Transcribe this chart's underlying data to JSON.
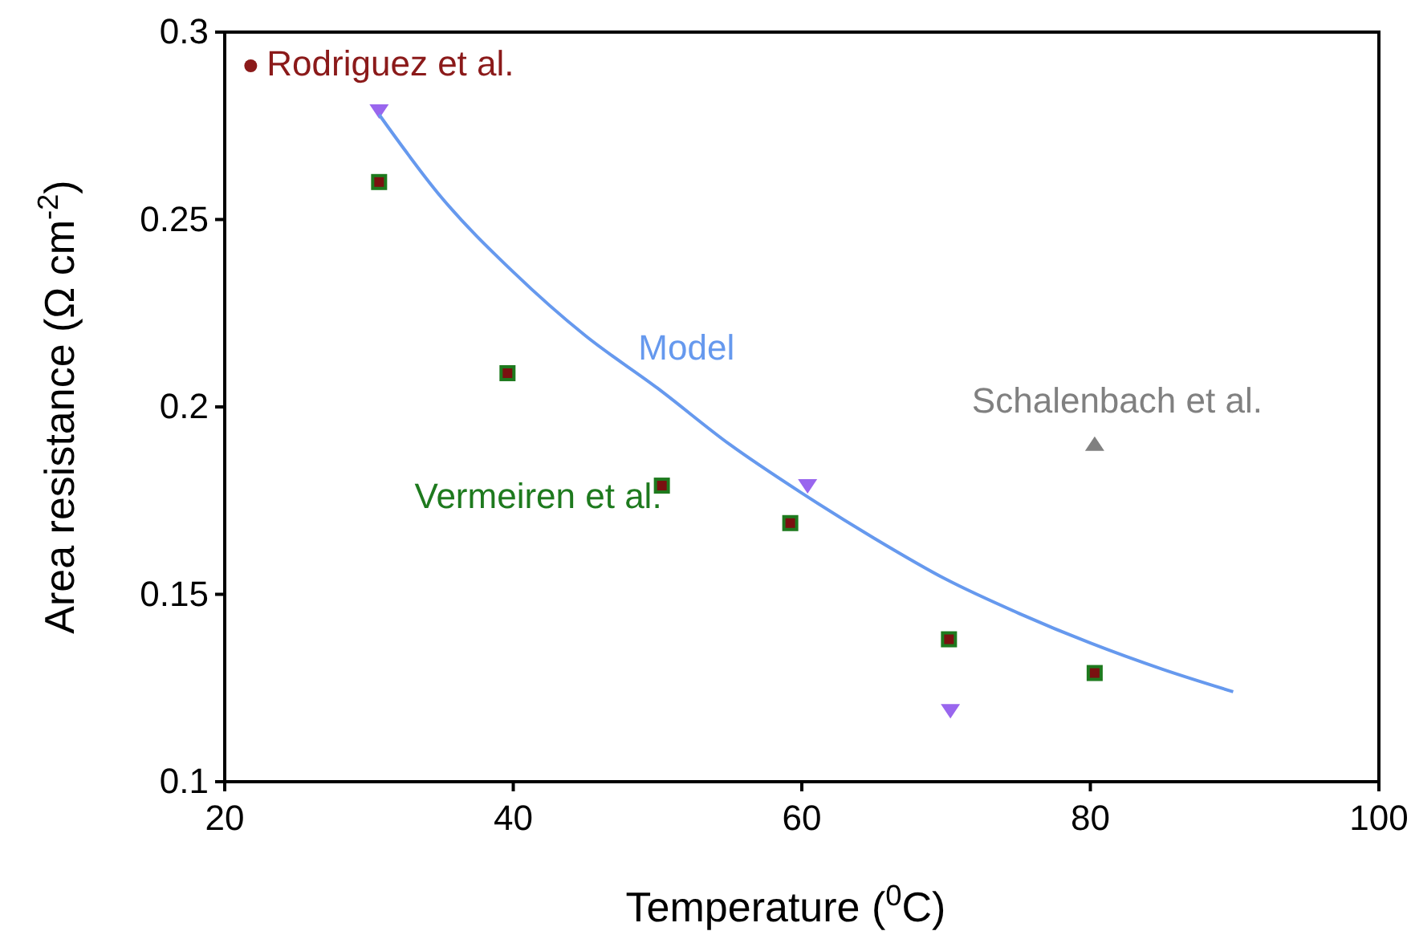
{
  "chart_data": {
    "type": "scatter",
    "xlabel": "Temperature ($^{0}$C)",
    "ylabel": "Area resistance (Ω cm$^{-2}$)",
    "xlim": [
      20,
      100
    ],
    "xticks": [
      20,
      40,
      60,
      80,
      100
    ],
    "ylim": [
      0.1,
      0.3
    ],
    "yticks": [
      0.1,
      0.15,
      0.2,
      0.25,
      0.3
    ],
    "grid": false,
    "series": [
      {
        "name": "Rodriguez et al.",
        "color": "#8b1a1a",
        "marker": "circle",
        "x": [
          21.8
        ],
        "values": [
          0.291
        ]
      },
      {
        "name": "Vermeiren et al.",
        "color": "#1e7a1e",
        "marker": "square",
        "x": [
          30.7,
          39.6,
          50.3,
          59.2,
          70.2,
          80.3
        ],
        "values": [
          0.26,
          0.209,
          0.179,
          0.169,
          0.138,
          0.129
        ]
      },
      {
        "color": "#9966ee",
        "marker": "triangle-down",
        "x": [
          30.7,
          60.4,
          70.3
        ],
        "values": [
          0.279,
          0.179,
          0.119
        ]
      },
      {
        "name": "Schalenbach et al.",
        "color": "#808080",
        "marker": "triangle",
        "x": [
          80.3
        ],
        "values": [
          0.19
        ]
      },
      {
        "name": "Model",
        "type": "line",
        "color": "#6699ee",
        "marker": "none",
        "line_style": "solid",
        "x": [
          30.7,
          35,
          40,
          45,
          50,
          55,
          60,
          65,
          70,
          75,
          80,
          85,
          89.9
        ],
        "values": [
          0.278,
          0.256,
          0.236,
          0.219,
          0.205,
          0.19,
          0.177,
          0.165,
          0.154,
          0.145,
          0.137,
          0.13,
          0.124
        ]
      }
    ]
  }
}
